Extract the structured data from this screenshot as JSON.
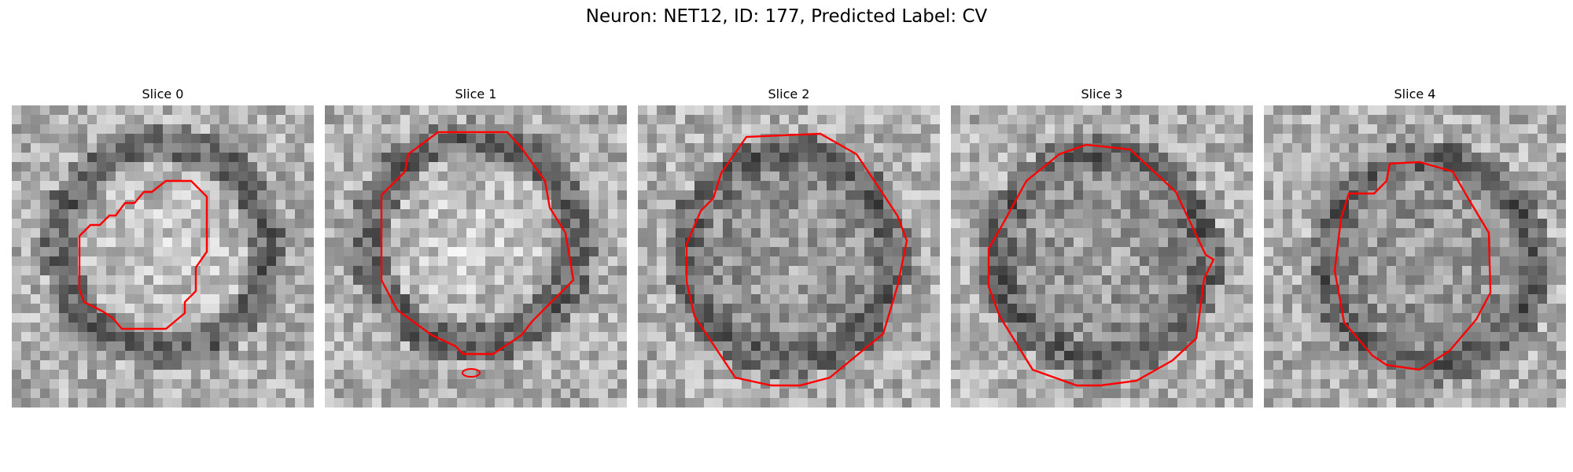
{
  "figure": {
    "title": "Neuron: NET12, ID: 177, Predicted Label: CV"
  },
  "panels": [
    {
      "label": "Slice 0",
      "seed": 11,
      "center": [
        0.5,
        0.47
      ],
      "inner": "bright",
      "ring": "dark",
      "contour_color": "#ff0000"
    },
    {
      "label": "Slice 1",
      "seed": 23,
      "center": [
        0.49,
        0.45
      ],
      "inner": "bright",
      "ring": "dark",
      "contour_color": "#ff0000"
    },
    {
      "label": "Slice 2",
      "seed": 37,
      "center": [
        0.5,
        0.5
      ],
      "inner": "mid",
      "ring": "dark",
      "contour_color": "#ff0000"
    },
    {
      "label": "Slice 3",
      "seed": 53,
      "center": [
        0.5,
        0.5
      ],
      "inner": "mid",
      "ring": "dark",
      "contour_color": "#ff0000"
    },
    {
      "label": "Slice 4",
      "seed": 71,
      "center": [
        0.55,
        0.52
      ],
      "inner": "mid",
      "ring": "dark",
      "contour_color": "#ff0000"
    }
  ]
}
